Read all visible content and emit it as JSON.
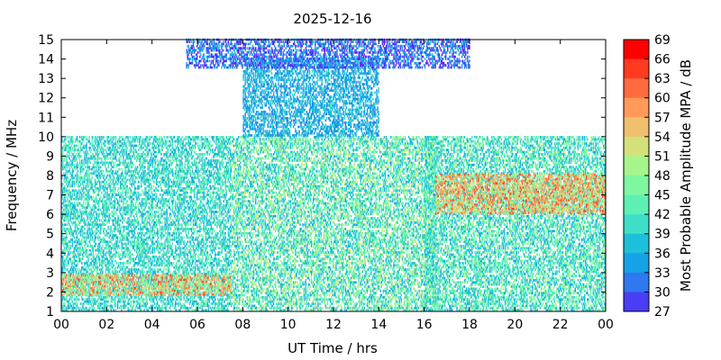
{
  "chart_data": {
    "type": "heatmap",
    "title": "2025-12-16",
    "xlabel": "UT Time / hrs",
    "ylabel": "Frequency / MHz",
    "colorbar_label": "Most Probable Amplitude MPA / dB",
    "xlim": [
      0,
      24
    ],
    "ylim": [
      1,
      15
    ],
    "x_ticks": [
      "00",
      "02",
      "04",
      "06",
      "08",
      "10",
      "12",
      "14",
      "16",
      "18",
      "20",
      "22",
      "00"
    ],
    "y_ticks": [
      "1",
      "2",
      "3",
      "4",
      "5",
      "6",
      "7",
      "8",
      "9",
      "10",
      "11",
      "12",
      "13",
      "14",
      "15"
    ],
    "colorbar": {
      "min": 27,
      "max": 69,
      "ticks": [
        "27",
        "30",
        "33",
        "36",
        "39",
        "42",
        "45",
        "48",
        "51",
        "54",
        "57",
        "60",
        "63",
        "66",
        "69"
      ],
      "colors": [
        "#7f00ff",
        "#4a3df5",
        "#2f78f0",
        "#16a2e6",
        "#1cc0db",
        "#3ddfc8",
        "#5ef0b3",
        "#7ef7a0",
        "#a6f58c",
        "#d4e07c",
        "#f0c070",
        "#ff9a5a",
        "#ff6a40",
        "#ff3a20",
        "#ff0000"
      ]
    },
    "regions": [
      {
        "name": "night-low",
        "x": [
          0,
          7.5
        ],
        "y": [
          1,
          10
        ],
        "amplitude_db": [
          36,
          48
        ]
      },
      {
        "name": "night-strong-band",
        "x": [
          0,
          7.5
        ],
        "y": [
          1.8,
          2.8
        ],
        "amplitude_db": [
          45,
          66
        ]
      },
      {
        "name": "day-main",
        "x": [
          7.5,
          16.5
        ],
        "y": [
          1,
          10
        ],
        "amplitude_db": [
          36,
          54
        ]
      },
      {
        "name": "day-mid",
        "x": [
          8,
          14
        ],
        "y": [
          10,
          14
        ],
        "amplitude_db": [
          33,
          42
        ]
      },
      {
        "name": "high-frequency-top",
        "x": [
          5.5,
          18
        ],
        "y": [
          13.5,
          15
        ],
        "amplitude_db": [
          27,
          39
        ]
      },
      {
        "name": "evening-low",
        "x": [
          16,
          24
        ],
        "y": [
          1,
          10
        ],
        "amplitude_db": [
          36,
          51
        ]
      },
      {
        "name": "evening-strong-bands",
        "x": [
          16.5,
          24
        ],
        "y": [
          6,
          8
        ],
        "amplitude_db": [
          48,
          66
        ]
      }
    ]
  }
}
